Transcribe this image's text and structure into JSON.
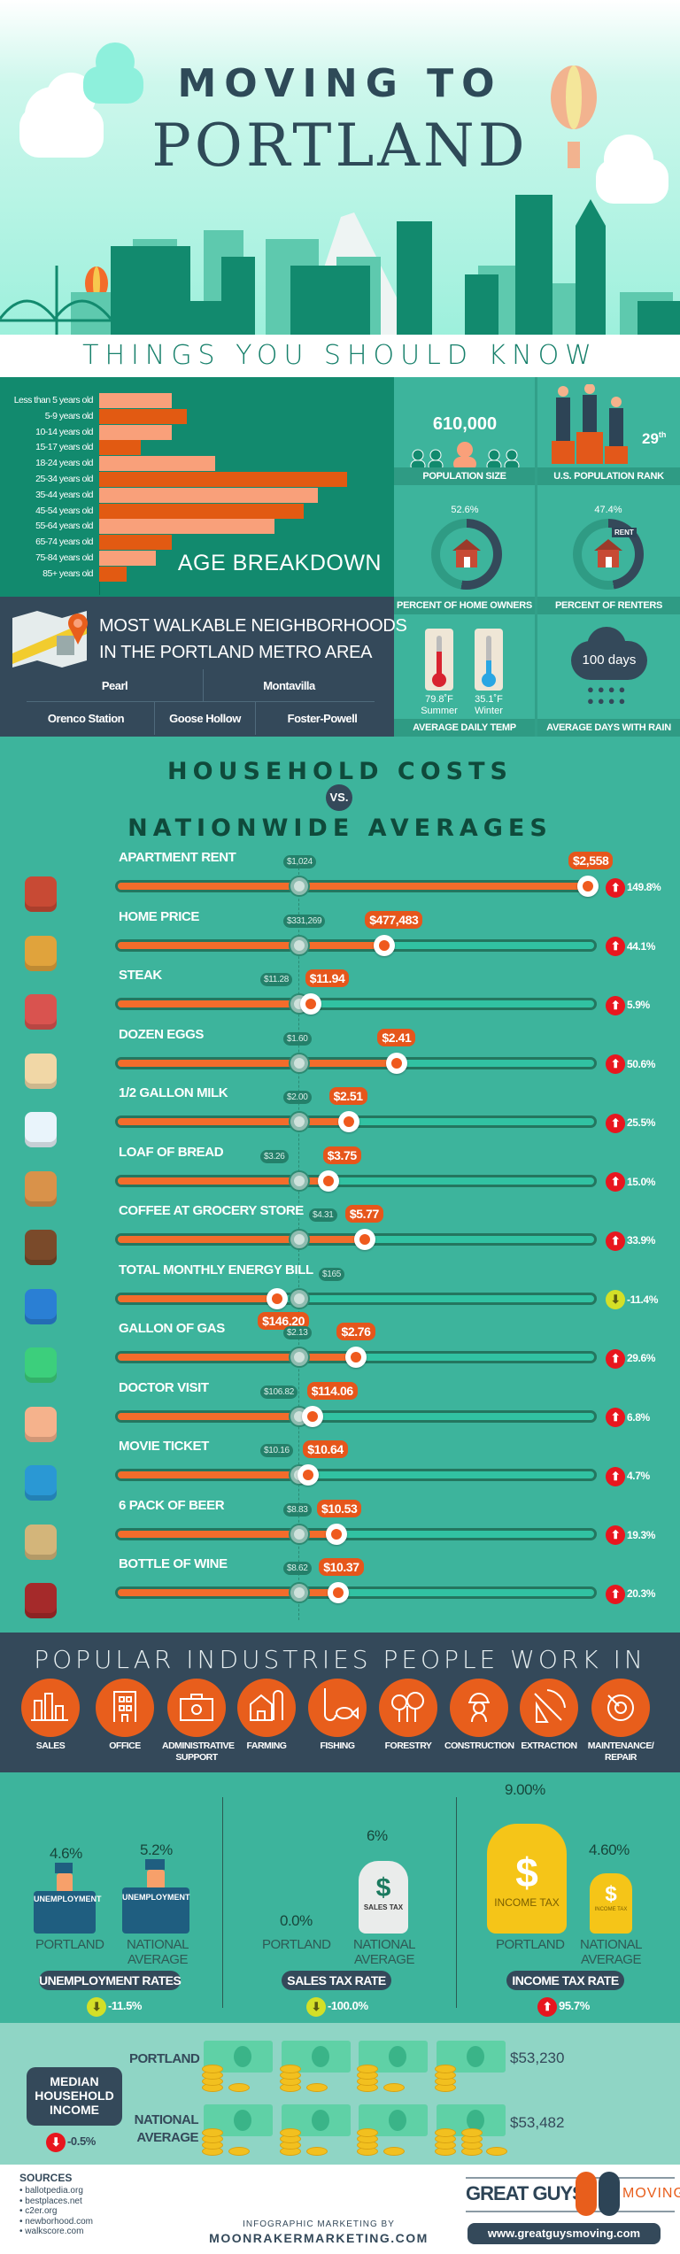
{
  "header": {
    "title_line1": "MOVING TO",
    "title_line2": "PORTLAND"
  },
  "things_title": "THINGS YOU SHOULD KNOW",
  "age": {
    "title": "AGE BREAKDOWN",
    "chart_data": {
      "type": "bar",
      "orientation": "horizontal",
      "categories": [
        "Less than 5 years old",
        "5-9 years old",
        "10-14 years old",
        "15-17 years old",
        "18-24 years old",
        "25-34 years old",
        "35-44 years old",
        "45-54 years old",
        "55-64 years old",
        "65-74 years old",
        "75-84 years old",
        "85+ years old"
      ],
      "values": [
        5.2,
        6.3,
        5.2,
        3.0,
        8.3,
        17.8,
        15.7,
        14.7,
        12.6,
        5.2,
        4.1,
        2.0
      ],
      "colors": [
        "#f9a07a",
        "#e25a12"
      ]
    }
  },
  "stats": {
    "population": {
      "value": "610,000",
      "label": "POPULATION SIZE"
    },
    "rank": {
      "value": "29",
      "suffix": "th",
      "label": "U.S. POPULATION RANK"
    },
    "owners": {
      "value": "52.6%",
      "fraction": 0.526,
      "label": "PERCENT OF HOME OWNERS"
    },
    "renters": {
      "value": "47.4%",
      "fraction": 0.474,
      "label": "PERCENT OF RENTERS",
      "tag": "RENT"
    },
    "temp": {
      "summer": "79.8˚F",
      "summer_label": "Summer",
      "winter": "35.1˚F",
      "winter_label": "Winter",
      "label": "AVERAGE DAILY TEMP"
    },
    "rain": {
      "value": "100 days",
      "label": "AVERAGE DAYS WITH RAIN"
    }
  },
  "walkable": {
    "title_line1": "MOST WALKABLE NEIGHBORHOODS",
    "title_line2": "IN THE PORTLAND METRO AREA",
    "neighborhoods": [
      "Pearl",
      "Montavilla",
      "Orenco Station",
      "Goose Hollow",
      "Foster-Powell"
    ]
  },
  "costs": {
    "title_line1": "HOUSEHOLD COSTS",
    "vs": "VS.",
    "title_line2": "NATIONWIDE AVERAGES",
    "items": [
      {
        "icon": "rent-house-icon",
        "label": "APARTMENT RENT",
        "national": "$1,024",
        "portland": "$2,558",
        "change": "149.8%",
        "trend": "up"
      },
      {
        "icon": "home-sale-icon",
        "label": "HOME PRICE",
        "national": "$331,269",
        "portland": "$477,483",
        "change": "44.1%",
        "trend": "up"
      },
      {
        "icon": "steak-icon",
        "label": "STEAK",
        "national": "$11.28",
        "portland": "$11.94",
        "change": "5.9%",
        "trend": "up"
      },
      {
        "icon": "eggs-icon",
        "label": "DOZEN EGGS",
        "national": "$1.60",
        "portland": "$2.41",
        "change": "50.6%",
        "trend": "up"
      },
      {
        "icon": "milk-icon",
        "label": "1/2 GALLON MILK",
        "national": "$2.00",
        "portland": "$2.51",
        "change": "25.5%",
        "trend": "up"
      },
      {
        "icon": "bread-icon",
        "label": "LOAF OF BREAD",
        "national": "$3.26",
        "portland": "$3.75",
        "change": "15.0%",
        "trend": "up"
      },
      {
        "icon": "coffee-icon",
        "label": "COFFEE AT GROCERY STORE",
        "national": "$4.31",
        "portland": "$5.77",
        "change": "33.9%",
        "trend": "up"
      },
      {
        "icon": "energy-plug-icon",
        "label": "TOTAL MONTHLY ENERGY BILL",
        "national": "$165",
        "portland": "$146.20",
        "change": "-11.4%",
        "trend": "down"
      },
      {
        "icon": "gas-pump-icon",
        "label": "GALLON OF GAS",
        "national": "$2.13",
        "portland": "$2.76",
        "change": "29.6%",
        "trend": "up"
      },
      {
        "icon": "doctor-icon",
        "label": "DOCTOR VISIT",
        "national": "$106.82",
        "portland": "$114.06",
        "change": "6.8%",
        "trend": "up"
      },
      {
        "icon": "movie-clapper-icon",
        "label": "MOVIE TICKET",
        "national": "$10.16",
        "portland": "$10.64",
        "change": "4.7%",
        "trend": "up"
      },
      {
        "icon": "beer-pack-icon",
        "label": "6 PACK OF BEER",
        "national": "$8.83",
        "portland": "$10.53",
        "change": "19.3%",
        "trend": "up"
      },
      {
        "icon": "wine-bottle-icon",
        "label": "BOTTLE OF WINE",
        "national": "$8.62",
        "portland": "$10.37",
        "change": "20.3%",
        "trend": "up"
      }
    ]
  },
  "colors": {
    "up": "#e8161e",
    "down": "#d4df27",
    "portland": "#f36c2b",
    "teal": "#3db49c",
    "navy": "#34495a"
  },
  "industries": {
    "title": "POPULAR INDUSTRIES PEOPLE WORK IN",
    "items": [
      {
        "icon": "bar-chart-icon",
        "label": "SALES"
      },
      {
        "icon": "office-building-icon",
        "label": "OFFICE"
      },
      {
        "icon": "briefcase-gear-icon",
        "label": "ADMINISTRATIVE SUPPORT"
      },
      {
        "icon": "barn-icon",
        "label": "FARMING"
      },
      {
        "icon": "fish-hook-icon",
        "label": "FISHING"
      },
      {
        "icon": "trees-icon",
        "label": "FORESTRY"
      },
      {
        "icon": "construction-worker-icon",
        "label": "CONSTRUCTION"
      },
      {
        "icon": "pickaxe-icon",
        "label": "EXTRACTION"
      },
      {
        "icon": "gear-wrench-icon",
        "label": "MAINTENANCE/ REPAIR"
      }
    ]
  },
  "taxes": {
    "unemployment": {
      "portland": "4.6%",
      "national": "5.2%",
      "bag_label": "UNEMPLOYMENT",
      "portland_label": "PORTLAND",
      "national_label": "NATIONAL AVERAGE",
      "title": "UNEMPLOYMENT RATES",
      "change": "-11.5%",
      "trend": "down"
    },
    "sales": {
      "portland": "0.0%",
      "national": "6%",
      "bag_label": "SALES TAX",
      "portland_label": "PORTLAND",
      "national_label": "NATIONAL AVERAGE",
      "title": "SALES TAX RATE",
      "change": "-100.0%",
      "trend": "down"
    },
    "income": {
      "portland": "9.00%",
      "national": "4.60%",
      "bag_label": "INCOME TAX",
      "portland_label": "PORTLAND",
      "national_label": "NATIONAL AVERAGE",
      "title": "INCOME TAX RATE",
      "change": "95.7%",
      "trend": "up"
    }
  },
  "income": {
    "title": "MEDIAN HOUSEHOLD INCOME",
    "change": "-0.5%",
    "trend": "down",
    "portland_label": "PORTLAND",
    "portland": "$53,230",
    "national_label": "NATIONAL AVERAGE",
    "national": "$53,482",
    "coin_label": "10"
  },
  "footer": {
    "sources_title": "SOURCES",
    "sources": [
      "ballotpedia.org",
      "bestplaces.net",
      "c2er.org",
      "newborhood.com",
      "walkscore.com"
    ],
    "credit_line1": "INFOGRAPHIC MARKETING BY",
    "credit_line2": "MOONRAKERMARKETING.COM",
    "logo_left": "GREAT GUYS",
    "logo_right": "MOVING",
    "url": "www.greatguysmoving.com"
  }
}
